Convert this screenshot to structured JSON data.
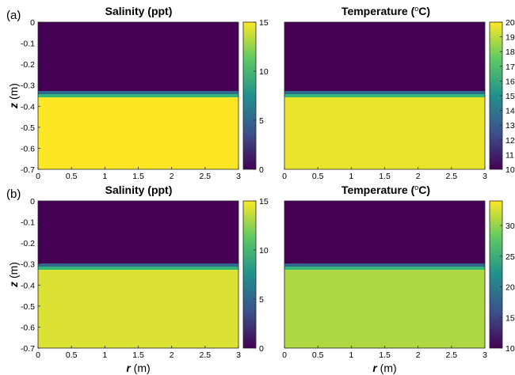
{
  "colors": {
    "top_layer": "#3a0f62",
    "bottom_layer": "#f1e634",
    "colorbar": [
      "#440154",
      "#3b528b",
      "#21908d",
      "#5dc963",
      "#fde725"
    ]
  },
  "chart_data": [
    {
      "type": "heatmap",
      "panel": "(a)",
      "title": "Salinity (ppt)",
      "ylabel": "z (m)",
      "xlim": [
        0,
        3
      ],
      "ylim": [
        -0.7,
        0
      ],
      "interface_z": -0.35,
      "xticks": [
        "0",
        "0.5",
        "1",
        "1.5",
        "2",
        "2.5",
        "3"
      ],
      "yticks": [
        "0",
        "-0.1",
        "-0.2",
        "-0.3",
        "-0.4",
        "-0.5",
        "-0.6",
        "-0.7"
      ],
      "clim": [
        0,
        15
      ],
      "cticks": [
        "0",
        "5",
        "10",
        "15"
      ],
      "upper_value": 0,
      "lower_value": 15
    },
    {
      "type": "heatmap",
      "panel": "",
      "title": "Temperature (",
      "title_sup": "o",
      "title_end": "C)",
      "xlim": [
        0,
        3
      ],
      "ylim": [
        -0.7,
        0
      ],
      "interface_z": -0.35,
      "xticks": [
        "0",
        "0.5",
        "1",
        "1.5",
        "2",
        "2.5",
        "3"
      ],
      "clim": [
        10,
        20
      ],
      "cticks": [
        "10",
        "11",
        "12",
        "13",
        "14",
        "15",
        "16",
        "17",
        "18",
        "19",
        "20"
      ],
      "upper_value": 10,
      "lower_value": 19.7
    },
    {
      "type": "heatmap",
      "panel": "(b)",
      "title": "Salinity (ppt)",
      "ylabel": "z (m)",
      "xlabel": "r (m)",
      "xlim": [
        0,
        3
      ],
      "ylim": [
        -0.7,
        0
      ],
      "interface_z": -0.32,
      "xticks": [
        "0",
        "0.5",
        "1",
        "1.5",
        "2",
        "2.5",
        "3"
      ],
      "yticks": [
        "0",
        "-0.1",
        "-0.2",
        "-0.3",
        "-0.4",
        "-0.5",
        "-0.6",
        "-0.7"
      ],
      "clim": [
        0,
        15
      ],
      "cticks": [
        "0",
        "5",
        "10",
        "15"
      ],
      "upper_value": 0,
      "lower_value": 14.2
    },
    {
      "type": "heatmap",
      "panel": "",
      "title": "Temperature (",
      "title_sup": "o",
      "title_end": "C)",
      "xlabel": "r (m)",
      "xlim": [
        0,
        3
      ],
      "ylim": [
        -0.7,
        0
      ],
      "interface_z": -0.32,
      "xticks": [
        "0",
        "0.5",
        "1",
        "1.5",
        "2",
        "2.5",
        "3"
      ],
      "clim": [
        10,
        34
      ],
      "cticks": [
        "10",
        "15",
        "20",
        "25",
        "30"
      ],
      "upper_value": 10,
      "lower_value": 31
    }
  ]
}
